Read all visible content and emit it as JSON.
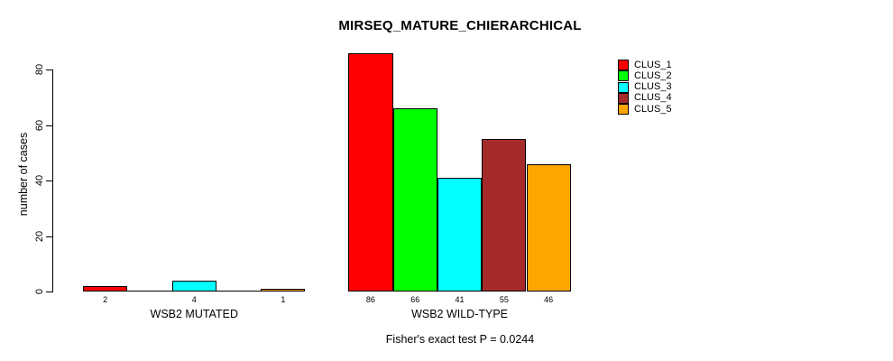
{
  "chart_data": {
    "type": "bar",
    "title": "MIRSEQ_MATURE_CHIERARCHICAL",
    "ylabel": "number of cases",
    "xlabel": "",
    "annotation": "Fisher's exact test P = 0.0244",
    "categories": [
      "WSB2 MUTATED",
      "WSB2 WILD-TYPE"
    ],
    "series": [
      {
        "name": "CLUS_1",
        "values": [
          2,
          86
        ]
      },
      {
        "name": "CLUS_2",
        "values": [
          0,
          66
        ]
      },
      {
        "name": "CLUS_3",
        "values": [
          4,
          41
        ]
      },
      {
        "name": "CLUS_4",
        "values": [
          0,
          55
        ]
      },
      {
        "name": "CLUS_5",
        "values": [
          1,
          46
        ]
      }
    ],
    "colors": [
      "#FF0000",
      "#00FF00",
      "#00FFFF",
      "#A52A2A",
      "#FFA500"
    ],
    "yticks": [
      0,
      20,
      40,
      60,
      80
    ],
    "ylim": [
      0,
      86
    ],
    "grid": false,
    "legend_position": "top-right",
    "bar_value_labels_shown_for_nonzero_bars": true,
    "background_color": "#FFFFFF",
    "axis_color": "#000000"
  }
}
